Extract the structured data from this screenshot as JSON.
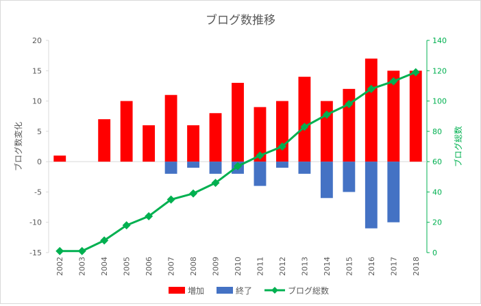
{
  "chart_data": {
    "type": "bar+line",
    "title": "ブログ数推移",
    "categories": [
      "2002",
      "2003",
      "2004",
      "2005",
      "2006",
      "2007",
      "2008",
      "2009",
      "2010",
      "2011",
      "2012",
      "2013",
      "2014",
      "2015",
      "2016",
      "2017",
      "2018"
    ],
    "series": [
      {
        "name": "増加",
        "type": "bar",
        "axis": "left",
        "color": "#ff0000",
        "values": [
          1,
          0,
          7,
          10,
          6,
          11,
          6,
          8,
          13,
          9,
          10,
          14,
          10,
          12,
          17,
          15,
          15
        ]
      },
      {
        "name": "終了",
        "type": "bar",
        "axis": "left",
        "color": "#4472c4",
        "values": [
          0,
          0,
          0,
          0,
          0,
          -2,
          -1,
          -2,
          -2,
          -4,
          -1,
          -2,
          -6,
          -5,
          -11,
          -10,
          0
        ]
      },
      {
        "name": "ブログ総数",
        "type": "line",
        "axis": "right",
        "color": "#00b050",
        "marker": "diamond",
        "values": [
          1,
          1,
          8,
          18,
          24,
          35,
          39,
          46,
          57,
          64,
          70,
          83,
          91,
          98,
          108,
          113,
          119
        ]
      }
    ],
    "ylabel_left": "ブログ数変化",
    "ylabel_right": "ブログ総数",
    "ylim_left": [
      -15,
      20
    ],
    "ylim_right": [
      0,
      140
    ],
    "yticks_left": [
      -15,
      -10,
      -5,
      0,
      5,
      10,
      15,
      20
    ],
    "yticks_right": [
      0,
      20,
      40,
      60,
      80,
      100,
      120,
      140
    ],
    "grid": false,
    "legend": "bottom",
    "colors": {
      "left_axis": "#7f7f7f",
      "right_axis": "#00b050",
      "title": "#595959"
    }
  }
}
